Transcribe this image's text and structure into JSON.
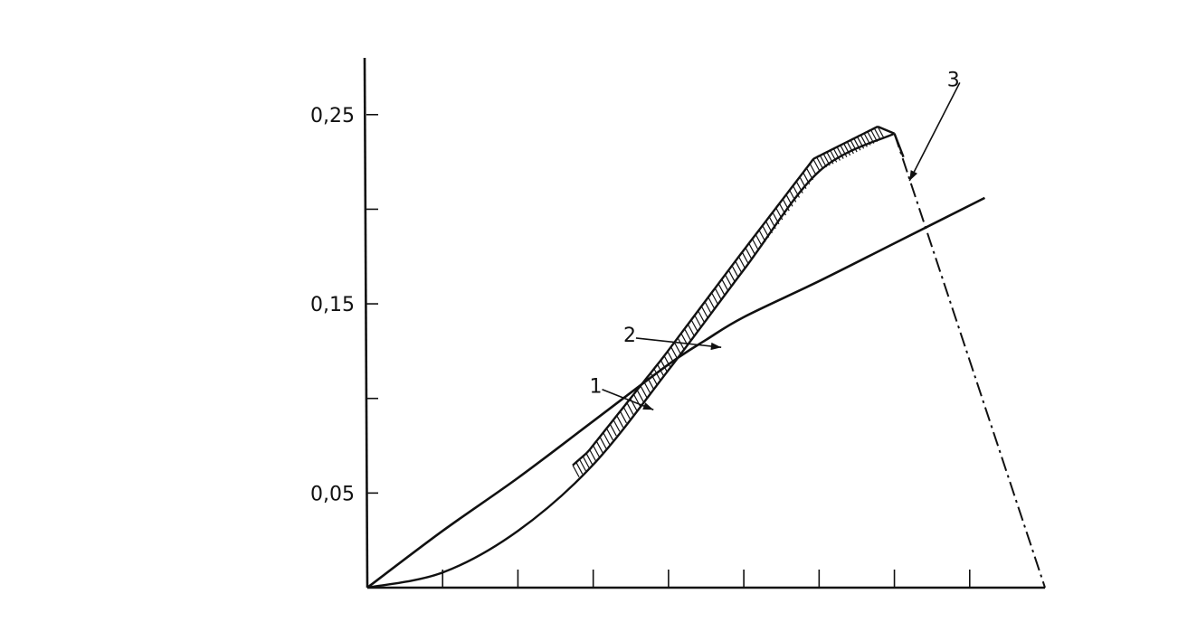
{
  "chart_data": {
    "type": "line",
    "title": "",
    "xlabel": "",
    "ylabel": "",
    "ylim": [
      0,
      0.28
    ],
    "xlim": [
      0,
      9
    ],
    "grid": false,
    "y_ticks": [
      0.05,
      0.1,
      0.15,
      0.2,
      0.25
    ],
    "y_tick_labels": [
      "0,05",
      "",
      "0,15",
      "",
      "0,25"
    ],
    "x_ticks": [
      1,
      2,
      3,
      4,
      5,
      6,
      7,
      8
    ],
    "series": [
      {
        "name": "1",
        "style": "solid",
        "x": [
          0,
          1,
          2,
          3,
          4,
          4.5,
          5,
          6,
          7,
          8.2
        ],
        "y": [
          0,
          0.03,
          0.058,
          0.088,
          0.118,
          0.131,
          0.143,
          0.162,
          0.182,
          0.206
        ]
      },
      {
        "name": "2",
        "style": "hatched-band",
        "x": [
          0,
          1,
          2,
          3,
          4,
          5,
          6,
          7
        ],
        "y": [
          0,
          0.008,
          0.03,
          0.065,
          0.115,
          0.168,
          0.22,
          0.24
        ]
      },
      {
        "name": "3",
        "style": "dash-dot",
        "x": [
          7,
          9
        ],
        "y": [
          0.24,
          0
        ]
      }
    ]
  }
}
